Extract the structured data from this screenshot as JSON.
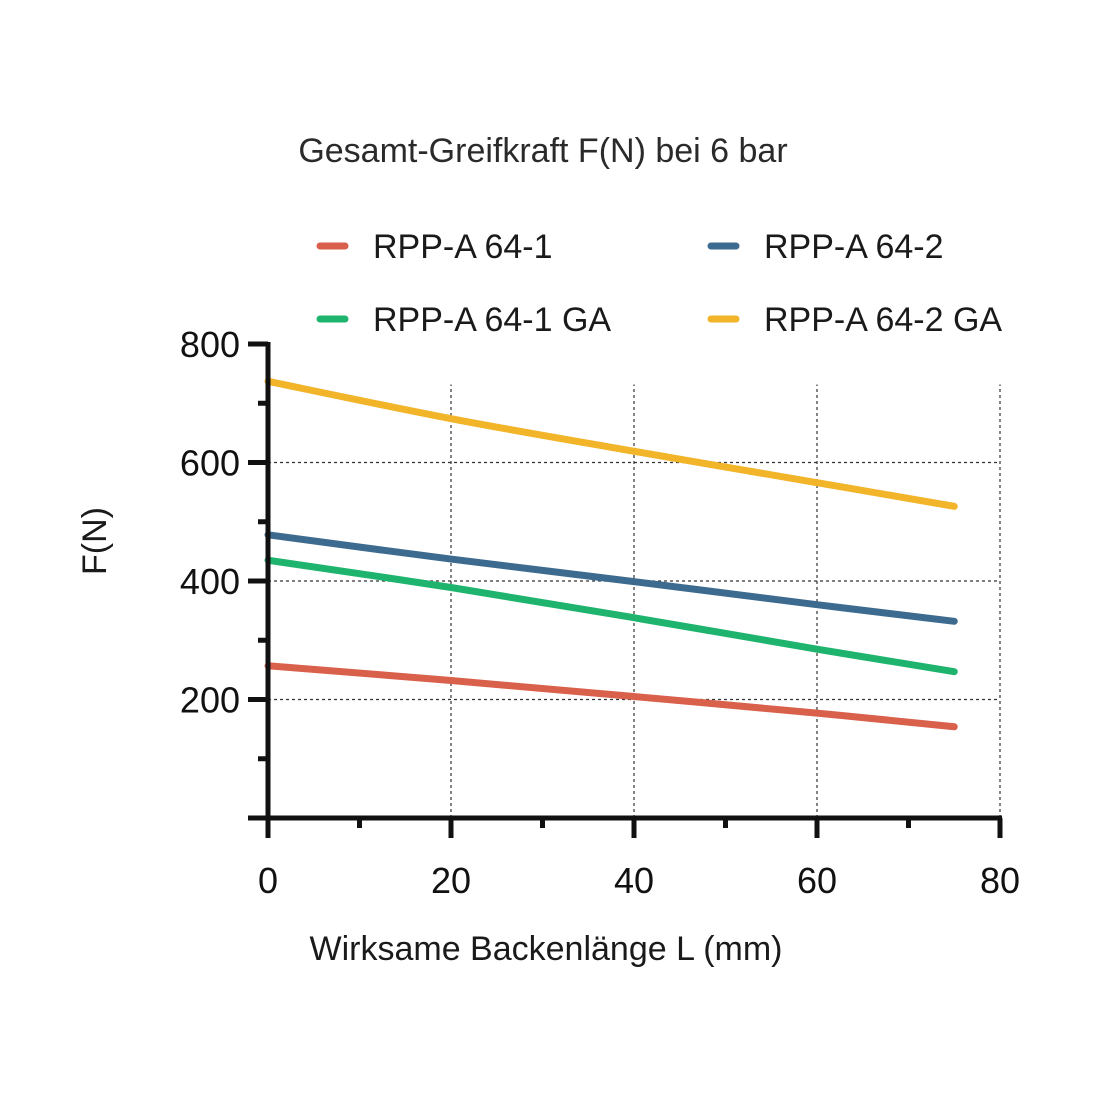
{
  "chart_data": {
    "type": "line",
    "title": "Gesamt-Greifkraft F(N) bei 6 bar",
    "xlabel": "Wirksame Backenlänge L (mm)",
    "ylabel": "F(N)",
    "xlim": [
      0,
      80
    ],
    "ylim": [
      0,
      800
    ],
    "xticks": [
      0,
      20,
      40,
      60,
      80
    ],
    "yticks": [
      200,
      400,
      600,
      800
    ],
    "grid": true,
    "legend_position": "top",
    "series": [
      {
        "name": "RPP-A 64-1",
        "color": "#d9604a",
        "x": [
          0,
          20,
          40,
          60,
          75
        ],
        "y": [
          257,
          232,
          205,
          177,
          154
        ]
      },
      {
        "name": "RPP-A 64-2",
        "color": "#3d6a8f",
        "x": [
          0,
          20,
          40,
          60,
          75
        ],
        "y": [
          478,
          437,
          399,
          360,
          332
        ]
      },
      {
        "name": "RPP-A 64-1 GA",
        "color": "#1fb46e",
        "x": [
          0,
          20,
          40,
          60,
          75
        ],
        "y": [
          435,
          389,
          338,
          285,
          247
        ]
      },
      {
        "name": "RPP-A 64-2 GA",
        "color": "#f2b428",
        "x": [
          0,
          20,
          40,
          60,
          75
        ],
        "y": [
          737,
          674,
          619,
          566,
          526
        ]
      }
    ]
  }
}
